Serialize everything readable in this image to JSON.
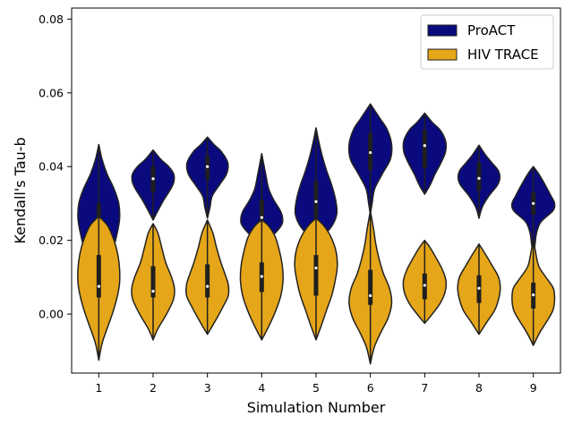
{
  "chart_data": {
    "type": "violin",
    "xlabel": "Simulation Number",
    "ylabel": "Kendall's Tau-b",
    "categories": [
      "1",
      "2",
      "3",
      "4",
      "5",
      "6",
      "7",
      "8",
      "9"
    ],
    "ylim": [
      -0.016,
      0.083
    ],
    "yticks": [
      0.0,
      0.02,
      0.04,
      0.06,
      0.08
    ],
    "ytick_labels": [
      "0.00",
      "0.02",
      "0.04",
      "0.06",
      "0.08"
    ],
    "grid": false,
    "legend_position": "top-right",
    "series": [
      {
        "name": "ProACT",
        "color": "#0a0a7e",
        "violins": [
          {
            "min": 0.011,
            "max": 0.046,
            "q1": 0.019,
            "median": 0.0255,
            "q3": 0.03,
            "density": [
              [
                0.011,
                0.2
              ],
              [
                0.014,
                0.45
              ],
              [
                0.018,
                0.68
              ],
              [
                0.022,
                0.85
              ],
              [
                0.026,
                0.96
              ],
              [
                0.03,
                0.92
              ],
              [
                0.034,
                0.7
              ],
              [
                0.038,
                0.38
              ],
              [
                0.042,
                0.15
              ],
              [
                0.046,
                0.0
              ]
            ]
          },
          {
            "min": 0.0255,
            "max": 0.0445,
            "q1": 0.033,
            "median": 0.0367,
            "q3": 0.04,
            "density": [
              [
                0.0255,
                0.0
              ],
              [
                0.028,
                0.22
              ],
              [
                0.031,
                0.5
              ],
              [
                0.034,
                0.82
              ],
              [
                0.036,
                0.96
              ],
              [
                0.038,
                0.95
              ],
              [
                0.04,
                0.72
              ],
              [
                0.042,
                0.35
              ],
              [
                0.0445,
                0.0
              ]
            ]
          },
          {
            "min": 0.026,
            "max": 0.048,
            "q1": 0.0365,
            "median": 0.04,
            "q3": 0.043,
            "density": [
              [
                0.026,
                0.0
              ],
              [
                0.029,
                0.12
              ],
              [
                0.032,
                0.22
              ],
              [
                0.035,
                0.55
              ],
              [
                0.038,
                0.88
              ],
              [
                0.041,
                0.94
              ],
              [
                0.044,
                0.65
              ],
              [
                0.046,
                0.3
              ],
              [
                0.048,
                0.0
              ]
            ]
          },
          {
            "min": 0.019,
            "max": 0.0435,
            "q1": 0.0235,
            "median": 0.0262,
            "q3": 0.031,
            "density": [
              [
                0.019,
                0.0
              ],
              [
                0.021,
                0.45
              ],
              [
                0.024,
                0.9
              ],
              [
                0.026,
                0.96
              ],
              [
                0.028,
                0.86
              ],
              [
                0.031,
                0.55
              ],
              [
                0.034,
                0.32
              ],
              [
                0.038,
                0.18
              ],
              [
                0.0435,
                0.0
              ]
            ]
          },
          {
            "min": 0.02,
            "max": 0.0505,
            "q1": 0.026,
            "median": 0.0305,
            "q3": 0.036,
            "density": [
              [
                0.02,
                0.0
              ],
              [
                0.023,
                0.62
              ],
              [
                0.027,
                0.95
              ],
              [
                0.031,
                0.9
              ],
              [
                0.035,
                0.72
              ],
              [
                0.039,
                0.48
              ],
              [
                0.043,
                0.28
              ],
              [
                0.047,
                0.12
              ],
              [
                0.0505,
                0.0
              ]
            ]
          },
          {
            "min": 0.027,
            "max": 0.057,
            "q1": 0.039,
            "median": 0.0438,
            "q3": 0.049,
            "density": [
              [
                0.027,
                0.0
              ],
              [
                0.03,
                0.08
              ],
              [
                0.034,
                0.2
              ],
              [
                0.038,
                0.55
              ],
              [
                0.042,
                0.92
              ],
              [
                0.046,
                0.98
              ],
              [
                0.05,
                0.78
              ],
              [
                0.053,
                0.45
              ],
              [
                0.057,
                0.0
              ]
            ]
          },
          {
            "min": 0.0325,
            "max": 0.0545,
            "q1": 0.0395,
            "median": 0.0457,
            "q3": 0.05,
            "density": [
              [
                0.0325,
                0.0
              ],
              [
                0.035,
                0.25
              ],
              [
                0.038,
                0.48
              ],
              [
                0.041,
                0.75
              ],
              [
                0.044,
                0.96
              ],
              [
                0.047,
                0.96
              ],
              [
                0.05,
                0.7
              ],
              [
                0.052,
                0.35
              ],
              [
                0.0545,
                0.0
              ]
            ]
          },
          {
            "min": 0.026,
            "max": 0.0458,
            "q1": 0.0335,
            "median": 0.0368,
            "q3": 0.041,
            "density": [
              [
                0.026,
                0.0
              ],
              [
                0.029,
                0.15
              ],
              [
                0.032,
                0.45
              ],
              [
                0.035,
                0.85
              ],
              [
                0.037,
                0.96
              ],
              [
                0.039,
                0.88
              ],
              [
                0.041,
                0.6
              ],
              [
                0.043,
                0.32
              ],
              [
                0.0458,
                0.0
              ]
            ]
          },
          {
            "min": 0.016,
            "max": 0.04,
            "q1": 0.027,
            "median": 0.03,
            "q3": 0.033,
            "density": [
              [
                0.016,
                0.0
              ],
              [
                0.019,
                0.08
              ],
              [
                0.022,
                0.15
              ],
              [
                0.025,
                0.35
              ],
              [
                0.028,
                0.9
              ],
              [
                0.03,
                0.98
              ],
              [
                0.032,
                0.82
              ],
              [
                0.035,
                0.55
              ],
              [
                0.038,
                0.25
              ],
              [
                0.04,
                0.0
              ]
            ]
          }
        ]
      },
      {
        "name": "HIV TRACE",
        "color": "#e6a619",
        "violins": [
          {
            "min": -0.0125,
            "max": 0.0265,
            "q1": 0.0045,
            "median": 0.0075,
            "q3": 0.016,
            "density": [
              [
                -0.0125,
                0.0
              ],
              [
                -0.008,
                0.15
              ],
              [
                -0.004,
                0.38
              ],
              [
                0.0,
                0.62
              ],
              [
                0.004,
                0.82
              ],
              [
                0.008,
                0.95
              ],
              [
                0.012,
                0.96
              ],
              [
                0.016,
                0.88
              ],
              [
                0.02,
                0.7
              ],
              [
                0.024,
                0.4
              ],
              [
                0.0265,
                0.0
              ]
            ]
          },
          {
            "min": -0.007,
            "max": 0.0245,
            "q1": 0.0045,
            "median": 0.0062,
            "q3": 0.013,
            "density": [
              [
                -0.007,
                0.0
              ],
              [
                -0.004,
                0.22
              ],
              [
                0.0,
                0.62
              ],
              [
                0.004,
                0.94
              ],
              [
                0.007,
                0.98
              ],
              [
                0.01,
                0.85
              ],
              [
                0.014,
                0.58
              ],
              [
                0.018,
                0.4
              ],
              [
                0.022,
                0.22
              ],
              [
                0.0245,
                0.0
              ]
            ]
          },
          {
            "min": -0.0055,
            "max": 0.0255,
            "q1": 0.0045,
            "median": 0.0075,
            "q3": 0.0135,
            "density": [
              [
                -0.0055,
                0.0
              ],
              [
                -0.002,
                0.35
              ],
              [
                0.002,
                0.72
              ],
              [
                0.005,
                0.96
              ],
              [
                0.008,
                0.96
              ],
              [
                0.011,
                0.8
              ],
              [
                0.014,
                0.62
              ],
              [
                0.018,
                0.42
              ],
              [
                0.022,
                0.25
              ],
              [
                0.0255,
                0.0
              ]
            ]
          },
          {
            "min": -0.007,
            "max": 0.0255,
            "q1": 0.006,
            "median": 0.0102,
            "q3": 0.014,
            "density": [
              [
                -0.007,
                0.0
              ],
              [
                -0.003,
                0.35
              ],
              [
                0.001,
                0.65
              ],
              [
                0.005,
                0.88
              ],
              [
                0.009,
                0.98
              ],
              [
                0.013,
                0.95
              ],
              [
                0.017,
                0.82
              ],
              [
                0.021,
                0.62
              ],
              [
                0.024,
                0.3
              ],
              [
                0.0255,
                0.0
              ]
            ]
          },
          {
            "min": -0.007,
            "max": 0.026,
            "q1": 0.005,
            "median": 0.0125,
            "q3": 0.016,
            "density": [
              [
                -0.007,
                0.0
              ],
              [
                -0.003,
                0.25
              ],
              [
                0.001,
                0.48
              ],
              [
                0.005,
                0.72
              ],
              [
                0.009,
                0.88
              ],
              [
                0.013,
                0.98
              ],
              [
                0.017,
                0.92
              ],
              [
                0.021,
                0.68
              ],
              [
                0.024,
                0.35
              ],
              [
                0.026,
                0.0
              ]
            ]
          },
          {
            "min": -0.0135,
            "max": 0.028,
            "q1": 0.0025,
            "median": 0.005,
            "q3": 0.012,
            "density": [
              [
                -0.0135,
                0.0
              ],
              [
                -0.009,
                0.18
              ],
              [
                -0.005,
                0.48
              ],
              [
                -0.001,
                0.82
              ],
              [
                0.003,
                0.98
              ],
              [
                0.007,
                0.88
              ],
              [
                0.011,
                0.6
              ],
              [
                0.015,
                0.4
              ],
              [
                0.019,
                0.25
              ],
              [
                0.023,
                0.15
              ],
              [
                0.028,
                0.0
              ]
            ]
          },
          {
            "min": -0.0025,
            "max": 0.02,
            "q1": 0.004,
            "median": 0.0078,
            "q3": 0.011,
            "density": [
              [
                -0.0025,
                0.0
              ],
              [
                0.0,
                0.35
              ],
              [
                0.003,
                0.72
              ],
              [
                0.006,
                0.94
              ],
              [
                0.009,
                0.98
              ],
              [
                0.012,
                0.82
              ],
              [
                0.015,
                0.55
              ],
              [
                0.018,
                0.25
              ],
              [
                0.02,
                0.0
              ]
            ]
          },
          {
            "min": -0.0055,
            "max": 0.019,
            "q1": 0.003,
            "median": 0.007,
            "q3": 0.0105,
            "density": [
              [
                -0.0055,
                0.0
              ],
              [
                -0.002,
                0.38
              ],
              [
                0.001,
                0.72
              ],
              [
                0.004,
                0.9
              ],
              [
                0.007,
                0.98
              ],
              [
                0.01,
                0.9
              ],
              [
                0.013,
                0.62
              ],
              [
                0.016,
                0.32
              ],
              [
                0.019,
                0.0
              ]
            ]
          },
          {
            "min": -0.0085,
            "max": 0.0205,
            "q1": 0.0015,
            "median": 0.0052,
            "q3": 0.0085,
            "density": [
              [
                -0.0085,
                0.0
              ],
              [
                -0.005,
                0.3
              ],
              [
                -0.002,
                0.62
              ],
              [
                0.001,
                0.9
              ],
              [
                0.004,
                0.98
              ],
              [
                0.007,
                0.92
              ],
              [
                0.01,
                0.58
              ],
              [
                0.013,
                0.25
              ],
              [
                0.017,
                0.1
              ],
              [
                0.0205,
                0.0
              ]
            ]
          }
        ]
      }
    ]
  }
}
